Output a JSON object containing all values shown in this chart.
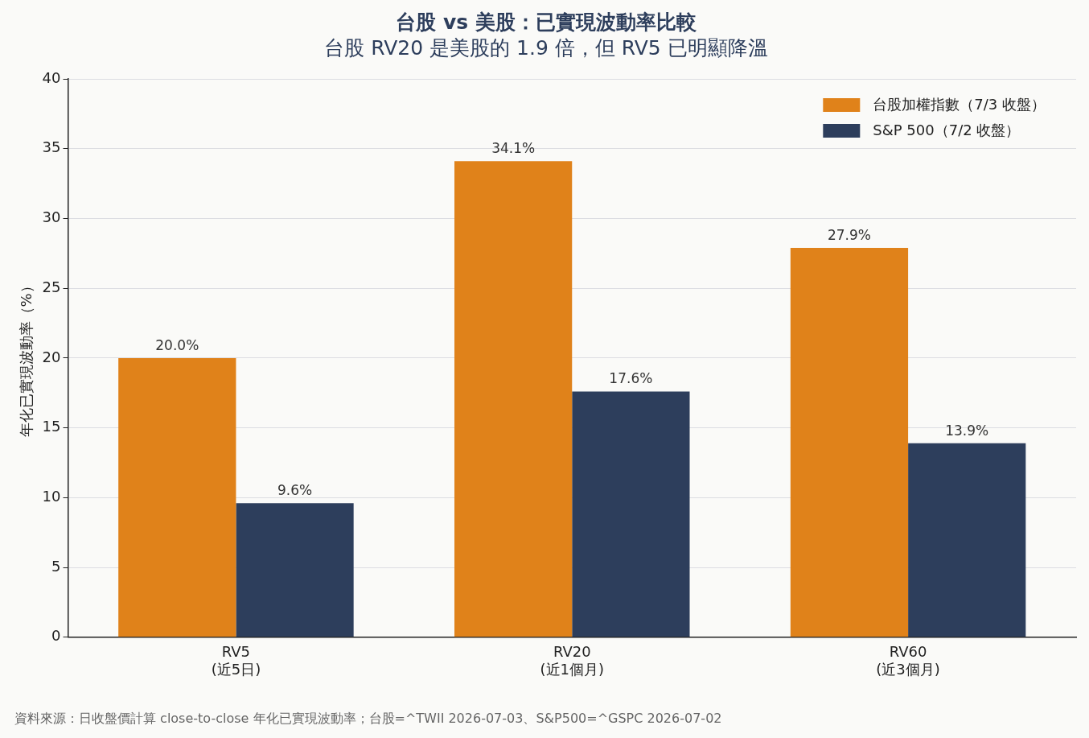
{
  "chart_data": {
    "type": "bar",
    "title": "台股 vs 美股：已實現波動率比較",
    "subtitle": "台股 RV20 是美股的 1.9 倍，但 RV5 已明顯降溫",
    "ylabel": "年化已實現波動率（%）",
    "categories": [
      "RV5\n(近5日)",
      "RV20\n(近1個月)",
      "RV60\n(近3個月)"
    ],
    "series": [
      {
        "name": "台股加權指數（7/3 收盤）",
        "color": "#e0821a",
        "values": [
          20.0,
          34.1,
          27.9
        ],
        "value_labels": [
          "20.0%",
          "34.1%",
          "27.9%"
        ]
      },
      {
        "name": "S&P 500（7/2 收盤）",
        "color": "#2d3e5c",
        "values": [
          9.6,
          17.6,
          13.9
        ],
        "value_labels": [
          "9.6%",
          "17.6%",
          "13.9%"
        ]
      }
    ],
    "ylim": [
      0,
      40
    ],
    "yticks": [
      0,
      5,
      10,
      15,
      20,
      25,
      30,
      35,
      40
    ],
    "grid": "y",
    "legend": "top right",
    "annotations": [
      "資料來源：日收盤價計算 close-to-close 年化已實現波動率；台股=^TWII 2026-07-03、S&P500=^GSPC 2026-07-02"
    ]
  }
}
